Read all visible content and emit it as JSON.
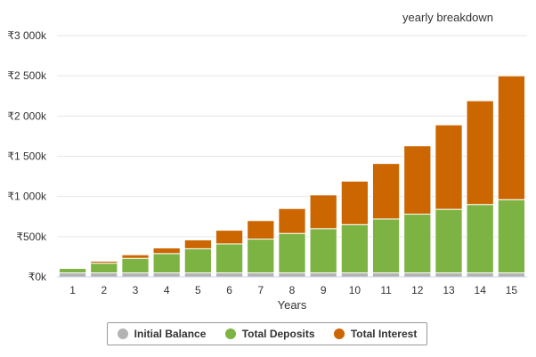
{
  "chart_data": {
    "type": "bar",
    "stacked": true,
    "subtitle": "yearly breakdown",
    "xlabel": "Years",
    "ylabel": "",
    "categories": [
      "1",
      "2",
      "3",
      "4",
      "5",
      "6",
      "7",
      "8",
      "9",
      "10",
      "11",
      "12",
      "13",
      "14",
      "15"
    ],
    "ylim": [
      0,
      3000000
    ],
    "yticks": [
      0,
      500000,
      1000000,
      1500000,
      2000000,
      2500000,
      3000000
    ],
    "ytick_labels": [
      "₹0k",
      "₹500k",
      "₹1 000k",
      "₹1 500k",
      "₹2 000k",
      "₹2 500k",
      "₹3 000k"
    ],
    "grid": true,
    "legend_position": "bottom",
    "series": [
      {
        "name": "Initial Balance",
        "color": "#b3b3b3",
        "values": [
          50000,
          50000,
          50000,
          50000,
          50000,
          50000,
          50000,
          50000,
          50000,
          50000,
          50000,
          50000,
          50000,
          50000,
          50000
        ]
      },
      {
        "name": "Total Deposits",
        "color": "#7cb342",
        "values": [
          55000,
          120000,
          180000,
          240000,
          300000,
          360000,
          420000,
          490000,
          550000,
          600000,
          670000,
          730000,
          790000,
          850000,
          910000
        ]
      },
      {
        "name": "Total Interest",
        "color": "#cc6600",
        "values": [
          5000,
          25000,
          45000,
          70000,
          110000,
          170000,
          230000,
          310000,
          420000,
          540000,
          690000,
          850000,
          1050000,
          1290000,
          1540000
        ]
      }
    ]
  }
}
